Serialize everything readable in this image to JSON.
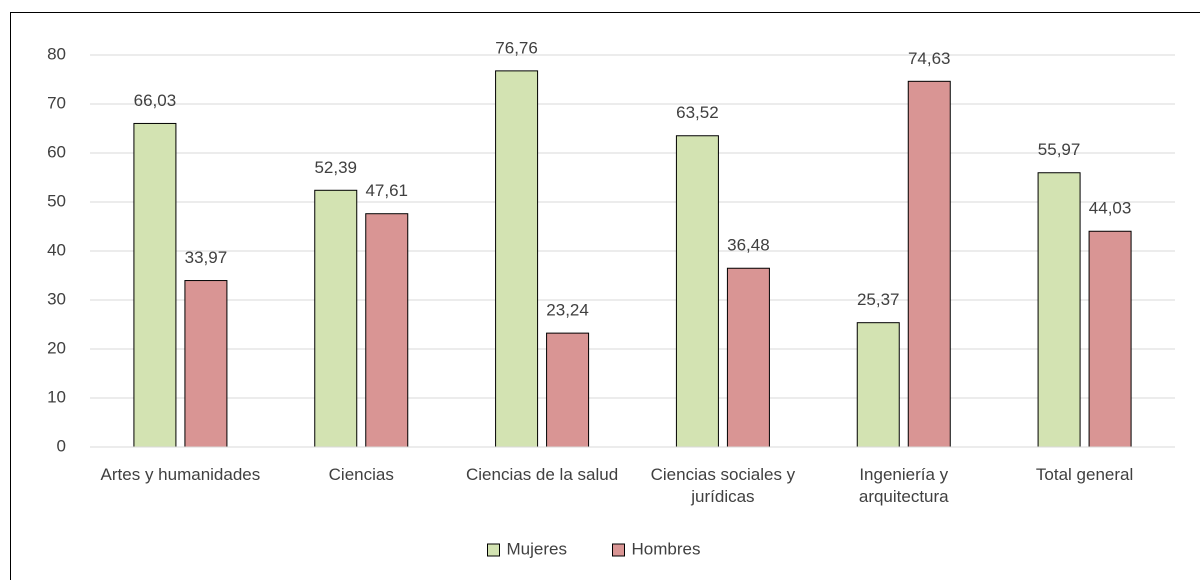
{
  "chart_data": {
    "type": "bar",
    "categories": [
      "Artes y humanidades",
      "Ciencias",
      "Ciencias de la salud",
      "Ciencias sociales y jurídicas",
      "Ingeniería y arquitectura",
      "Total general"
    ],
    "series": [
      {
        "name": "Mujeres",
        "color": "#d3e3b2",
        "values": [
          66.03,
          52.39,
          76.76,
          63.52,
          25.37,
          55.97
        ],
        "value_labels": [
          "66,03",
          "52,39",
          "76,76",
          "63,52",
          "25,37",
          "55,97"
        ]
      },
      {
        "name": "Hombres",
        "color": "#d99594",
        "values": [
          33.97,
          47.61,
          23.24,
          36.48,
          74.63,
          44.03
        ],
        "value_labels": [
          "33,97",
          "47,61",
          "23,24",
          "36,48",
          "74,63",
          "44,03"
        ]
      }
    ],
    "ylim": [
      0,
      80
    ],
    "yticks": [
      0,
      10,
      20,
      30,
      40,
      50,
      60,
      70,
      80
    ],
    "grid": true,
    "legend": "bottom"
  }
}
